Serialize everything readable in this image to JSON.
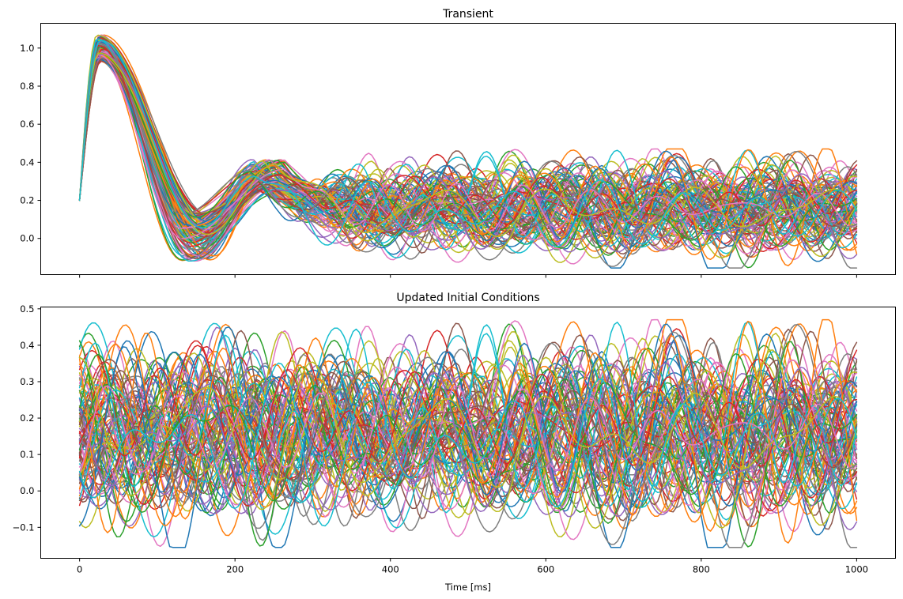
{
  "chart_data": [
    {
      "type": "line",
      "title": "Transient",
      "xlabel": "",
      "ylabel": "",
      "xlim": [
        -50,
        1050
      ],
      "ylim": [
        -0.19,
        1.13
      ],
      "xticks": [
        0,
        200,
        400,
        600,
        800,
        1000
      ],
      "xtick_labels_shown": false,
      "yticks": [
        0.0,
        0.2,
        0.4,
        0.6,
        0.8,
        1.0
      ],
      "ytick_labels": [
        "0.0",
        "0.2",
        "0.4",
        "0.6",
        "0.8",
        "1.0"
      ],
      "grid": false,
      "n_series": 100,
      "x_range": [
        0,
        1000
      ],
      "peak": {
        "x": 25,
        "y_range": [
          0.93,
          1.07
        ]
      },
      "start_y": 0.2,
      "trough": {
        "x_range": [
          120,
          180
        ],
        "y_range": [
          -0.14,
          0.15
        ]
      },
      "steady_range": [
        -0.14,
        0.47
      ]
    },
    {
      "type": "line",
      "title": "Updated Initial Conditions",
      "xlabel": "Time [ms]",
      "ylabel": "",
      "xlim": [
        -50,
        1050
      ],
      "ylim": [
        -0.185,
        0.505
      ],
      "xticks": [
        0,
        200,
        400,
        600,
        800,
        1000
      ],
      "xtick_labels": [
        "0",
        "200",
        "400",
        "600",
        "800",
        "1000"
      ],
      "yticks": [
        -0.1,
        0.0,
        0.1,
        0.2,
        0.3,
        0.4,
        0.5
      ],
      "ytick_labels": [
        "−0.1",
        "0.0",
        "0.1",
        "0.2",
        "0.3",
        "0.4",
        "0.5"
      ],
      "grid": false,
      "n_series": 100,
      "x_range": [
        0,
        1000
      ],
      "value_range": [
        -0.16,
        0.47
      ]
    }
  ],
  "palette": [
    "#1f77b4",
    "#ff7f0e",
    "#2ca02c",
    "#d62728",
    "#9467bd",
    "#8c564b",
    "#e377c2",
    "#7f7f7f",
    "#bcbd22",
    "#17becf"
  ]
}
